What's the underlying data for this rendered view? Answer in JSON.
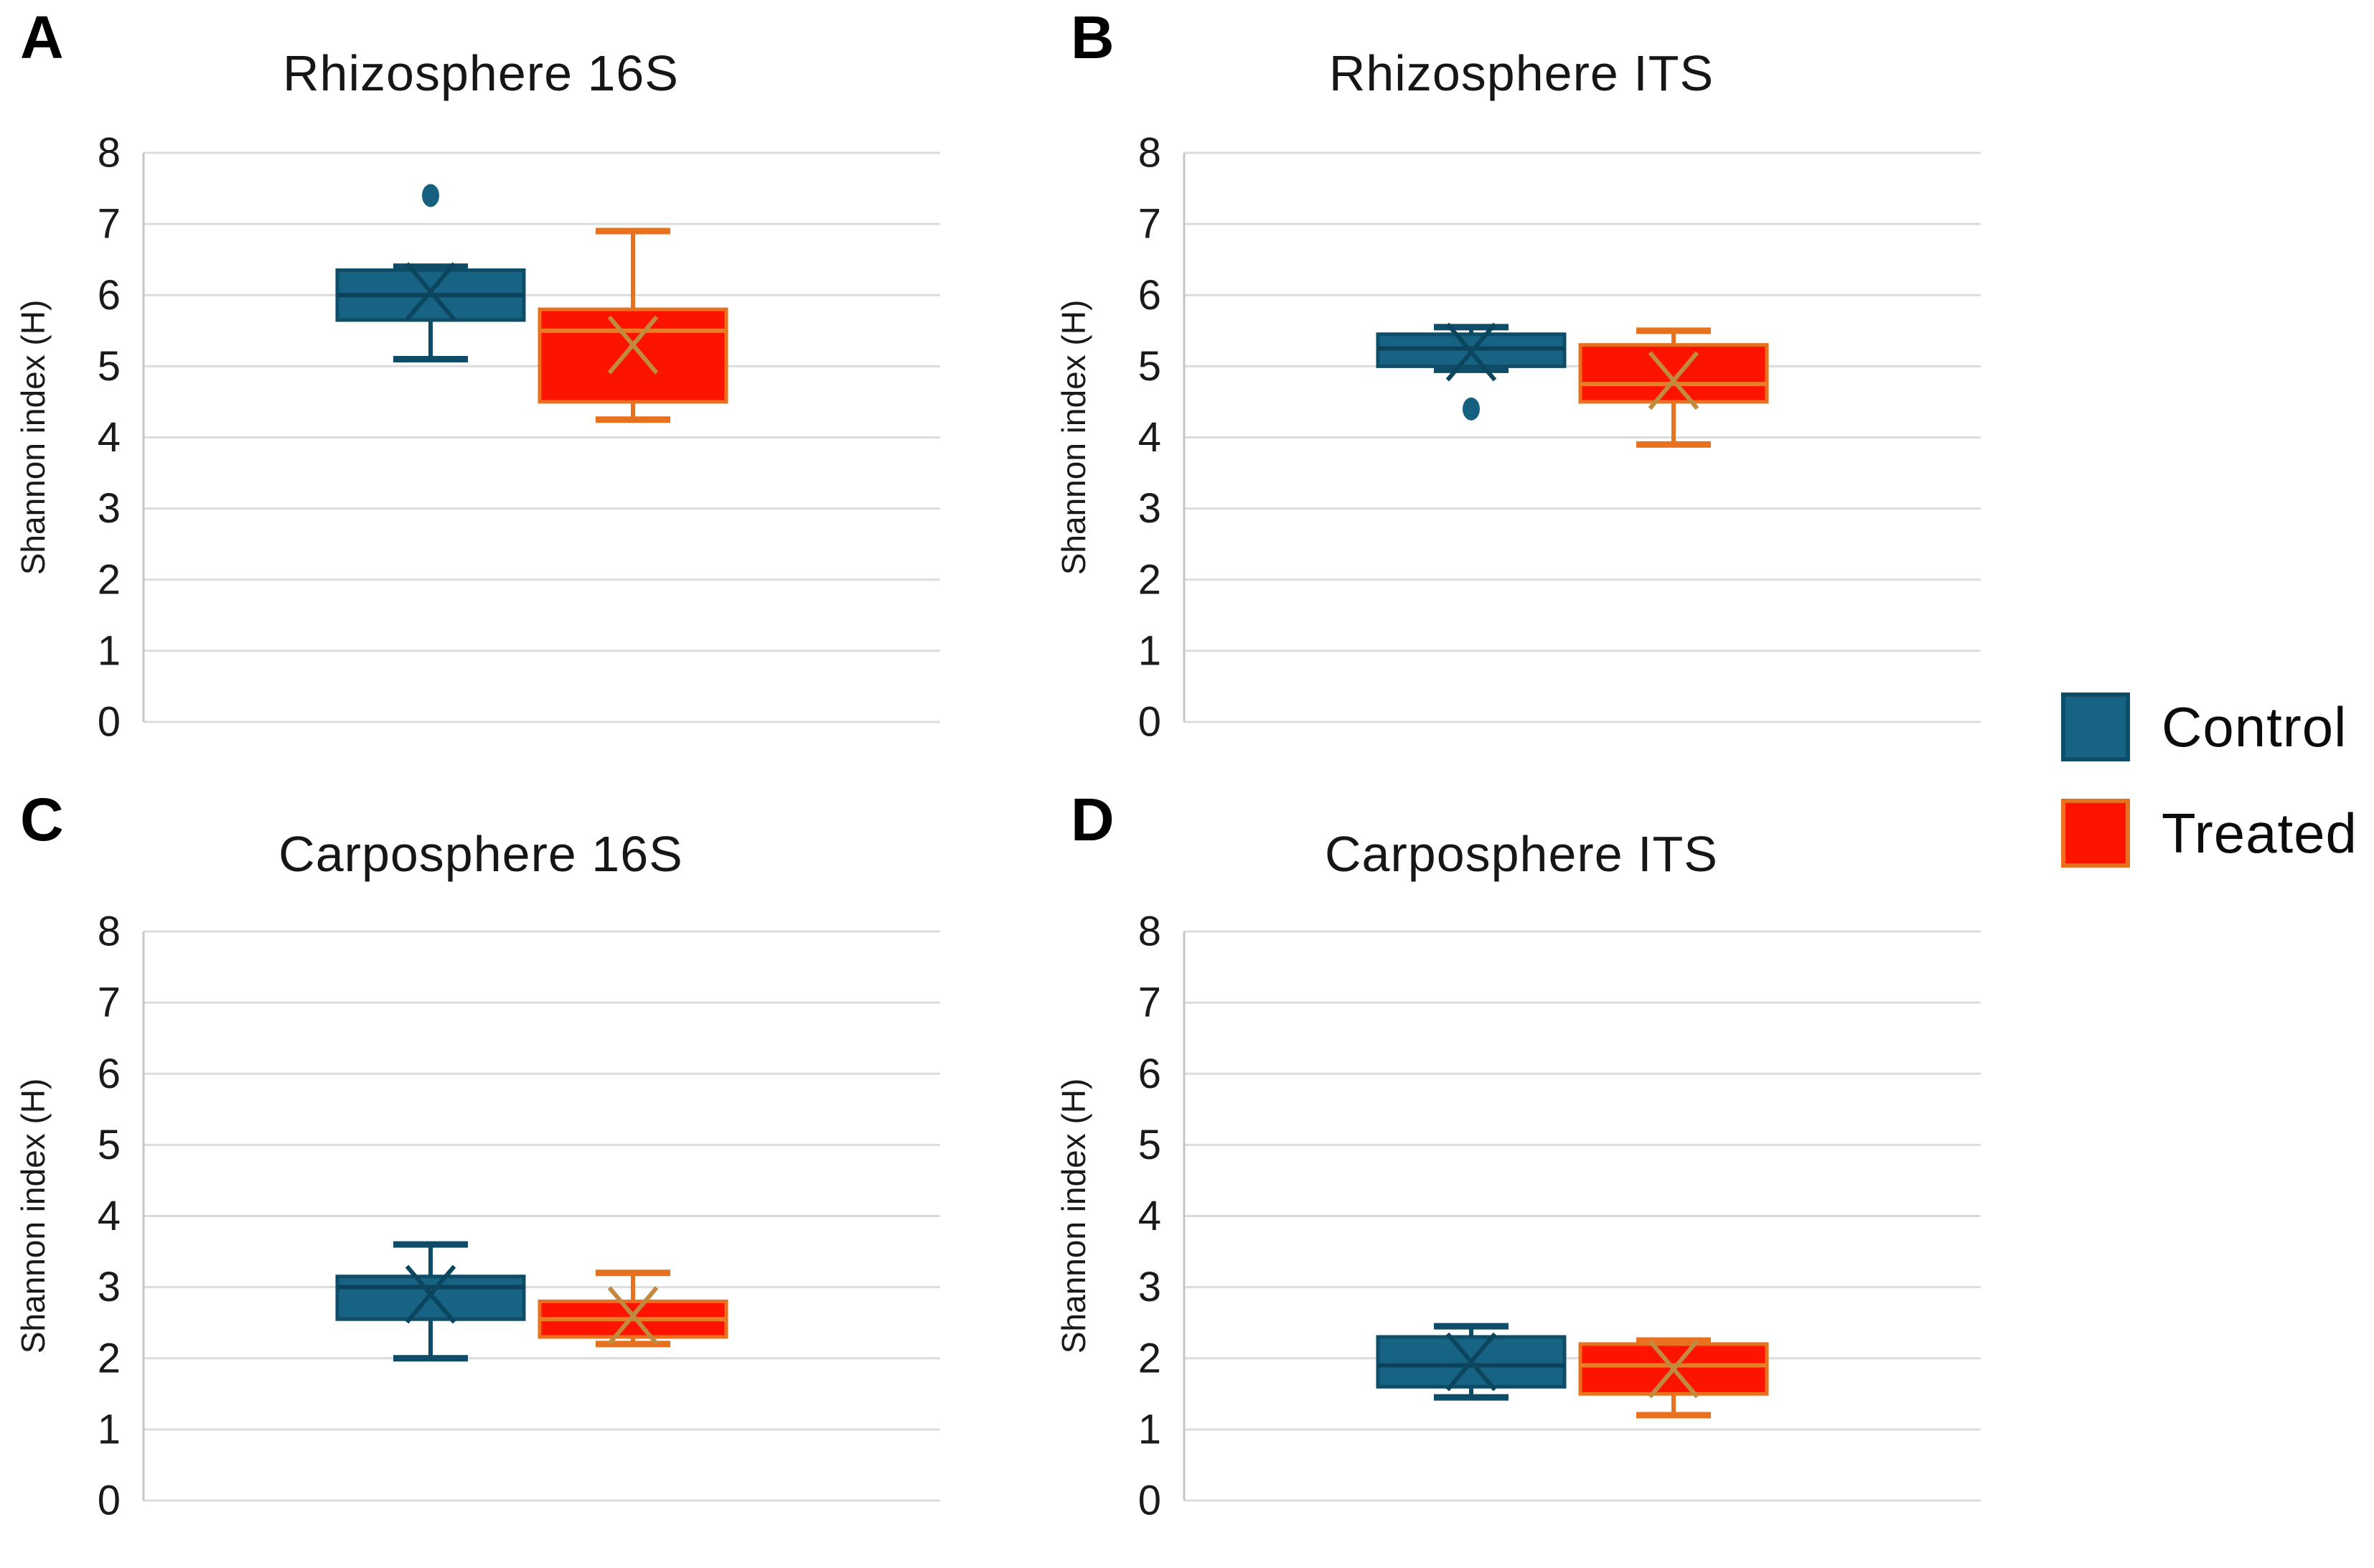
{
  "figure": {
    "background": "#ffffff",
    "legend": {
      "items": [
        {
          "label": "Control",
          "fill": "#176384",
          "border": "#0F4E69"
        },
        {
          "label": "Treated",
          "fill": "#FC1400",
          "border": "#E8711F"
        }
      ]
    },
    "colors": {
      "control_fill": "#176384",
      "control_border": "#0E4C67",
      "control_median": "#0C4259",
      "control_mean": "#0B455E",
      "control_outlier": "#14607E",
      "treated_fill": "#FC1400",
      "treated_border": "#E8711F",
      "treated_median": "#E87E24",
      "treated_mean": "#C18A3E",
      "gridline": "#DCDCDE",
      "axis_line": "#C6C6C8",
      "tick_text": "#1a1a1a"
    }
  },
  "chart_data": [
    {
      "type": "box",
      "letter": "A",
      "title": "Rhizosphere 16S",
      "ylabel": "Shannon index (H)",
      "ylim": [
        0,
        8
      ],
      "yticks": [
        0,
        1,
        2,
        3,
        4,
        5,
        6,
        7,
        8
      ],
      "grid": true,
      "series": [
        {
          "name": "Control",
          "q1": 5.65,
          "median": 6.0,
          "q3": 6.35,
          "whisker_low": 5.1,
          "whisker_high": 6.4,
          "mean": 6.05,
          "outliers": [
            7.4
          ]
        },
        {
          "name": "Treated",
          "q1": 4.5,
          "median": 5.5,
          "q3": 5.8,
          "whisker_low": 4.25,
          "whisker_high": 6.9,
          "mean": 5.3,
          "outliers": []
        }
      ]
    },
    {
      "type": "box",
      "letter": "B",
      "title": "Rhizosphere ITS",
      "ylabel": "Shannon index (H)",
      "ylim": [
        0,
        8
      ],
      "yticks": [
        0,
        1,
        2,
        3,
        4,
        5,
        6,
        7,
        8
      ],
      "grid": true,
      "series": [
        {
          "name": "Control",
          "q1": 5.0,
          "median": 5.25,
          "q3": 5.45,
          "whisker_low": 4.95,
          "whisker_high": 5.55,
          "mean": 5.2,
          "outliers": [
            4.4
          ]
        },
        {
          "name": "Treated",
          "q1": 4.5,
          "median": 4.75,
          "q3": 5.3,
          "whisker_low": 3.9,
          "whisker_high": 5.5,
          "mean": 4.8,
          "outliers": []
        }
      ]
    },
    {
      "type": "box",
      "letter": "C",
      "title": "Carposphere 16S",
      "ylabel": "Shannon index (H)",
      "ylim": [
        0,
        8
      ],
      "yticks": [
        0,
        1,
        2,
        3,
        4,
        5,
        6,
        7,
        8
      ],
      "grid": true,
      "series": [
        {
          "name": "Control",
          "q1": 2.55,
          "median": 3.0,
          "q3": 3.15,
          "whisker_low": 2.0,
          "whisker_high": 3.6,
          "mean": 2.9,
          "outliers": []
        },
        {
          "name": "Treated",
          "q1": 2.3,
          "median": 2.55,
          "q3": 2.8,
          "whisker_low": 2.2,
          "whisker_high": 3.2,
          "mean": 2.6,
          "outliers": []
        }
      ]
    },
    {
      "type": "box",
      "letter": "D",
      "title": "Carposphere ITS",
      "ylabel": "Shannon index (H)",
      "ylim": [
        0,
        8
      ],
      "yticks": [
        0,
        1,
        2,
        3,
        4,
        5,
        6,
        7,
        8
      ],
      "grid": true,
      "series": [
        {
          "name": "Control",
          "q1": 1.6,
          "median": 1.9,
          "q3": 2.3,
          "whisker_low": 1.45,
          "whisker_high": 2.45,
          "mean": 1.95,
          "outliers": []
        },
        {
          "name": "Treated",
          "q1": 1.5,
          "median": 1.9,
          "q3": 2.2,
          "whisker_low": 1.2,
          "whisker_high": 2.25,
          "mean": 1.85,
          "outliers": []
        }
      ]
    }
  ]
}
